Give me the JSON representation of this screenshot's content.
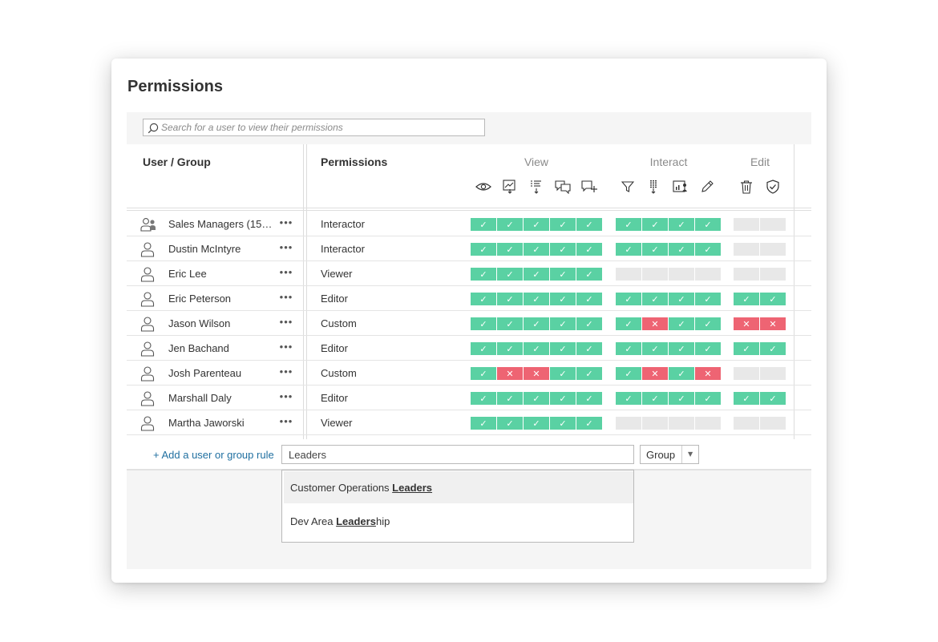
{
  "title": "Permissions",
  "search": {
    "placeholder": "Search for a user to view their permissions"
  },
  "table": {
    "columns": {
      "user": "User / Group",
      "permissions": "Permissions"
    },
    "groups": [
      {
        "label": "View",
        "capabilities": [
          "view-icon",
          "download-image-icon",
          "download-summary-data-icon",
          "view-comments-icon",
          "add-comment-icon"
        ]
      },
      {
        "label": "Interact",
        "capabilities": [
          "filter-icon",
          "download-full-data-icon",
          "share-customized-icon",
          "web-edit-icon"
        ]
      },
      {
        "label": "Edit",
        "capabilities": [
          "delete-icon",
          "set-permissions-icon"
        ]
      }
    ],
    "rows": [
      {
        "name": "Sales Managers (15…",
        "type": "group",
        "role": "Interactor",
        "more": "•••",
        "view": [
          "allow",
          "allow",
          "allow",
          "allow",
          "allow"
        ],
        "interact": [
          "allow",
          "allow",
          "allow",
          "allow"
        ],
        "edit": [
          "none",
          "none"
        ]
      },
      {
        "name": "Dustin McIntyre",
        "type": "user",
        "role": "Interactor",
        "more": "•••",
        "view": [
          "allow",
          "allow",
          "allow",
          "allow",
          "allow"
        ],
        "interact": [
          "allow",
          "allow",
          "allow",
          "allow"
        ],
        "edit": [
          "none",
          "none"
        ]
      },
      {
        "name": "Eric Lee",
        "type": "user",
        "role": "Viewer",
        "more": "•••",
        "view": [
          "allow",
          "allow",
          "allow",
          "allow",
          "allow"
        ],
        "interact": [
          "none",
          "none",
          "none",
          "none"
        ],
        "edit": [
          "none",
          "none"
        ]
      },
      {
        "name": "Eric Peterson",
        "type": "user",
        "role": "Editor",
        "more": "•••",
        "view": [
          "allow",
          "allow",
          "allow",
          "allow",
          "allow"
        ],
        "interact": [
          "allow",
          "allow",
          "allow",
          "allow"
        ],
        "edit": [
          "allow",
          "allow"
        ]
      },
      {
        "name": "Jason Wilson",
        "type": "user",
        "role": "Custom",
        "more": "•••",
        "view": [
          "allow",
          "allow",
          "allow",
          "allow",
          "allow"
        ],
        "interact": [
          "allow",
          "deny",
          "allow",
          "allow"
        ],
        "edit": [
          "deny",
          "deny"
        ]
      },
      {
        "name": "Jen Bachand",
        "type": "user",
        "role": "Editor",
        "more": "•••",
        "view": [
          "allow",
          "allow",
          "allow",
          "allow",
          "allow"
        ],
        "interact": [
          "allow",
          "allow",
          "allow",
          "allow"
        ],
        "edit": [
          "allow",
          "allow"
        ]
      },
      {
        "name": "Josh Parenteau",
        "type": "user",
        "role": "Custom",
        "more": "•••",
        "view": [
          "allow",
          "deny",
          "deny",
          "allow",
          "allow"
        ],
        "interact": [
          "allow",
          "deny",
          "allow",
          "deny"
        ],
        "edit": [
          "none",
          "none"
        ]
      },
      {
        "name": "Marshall Daly",
        "type": "user",
        "role": "Editor",
        "more": "•••",
        "view": [
          "allow",
          "allow",
          "allow",
          "allow",
          "allow"
        ],
        "interact": [
          "allow",
          "allow",
          "allow",
          "allow"
        ],
        "edit": [
          "allow",
          "allow"
        ]
      },
      {
        "name": "Martha Jaworski",
        "type": "user",
        "role": "Viewer",
        "more": "•••",
        "view": [
          "allow",
          "allow",
          "allow",
          "allow",
          "allow"
        ],
        "interact": [
          "none",
          "none",
          "none",
          "none"
        ],
        "edit": [
          "none",
          "none"
        ]
      }
    ]
  },
  "add_rule": {
    "link_label": "+ Add a user or group rule",
    "input_value": "Leaders",
    "type_select": "Group",
    "suggestions": [
      {
        "prefix": "Customer Operations ",
        "match": "Leaders",
        "suffix": ""
      },
      {
        "prefix": "Dev Area ",
        "match": "Leaders",
        "suffix": "hip"
      }
    ]
  },
  "colors": {
    "allow": "#5ad1a3",
    "deny": "#ee6473",
    "none": "#e8e8e8",
    "link": "#1f6fa0"
  }
}
